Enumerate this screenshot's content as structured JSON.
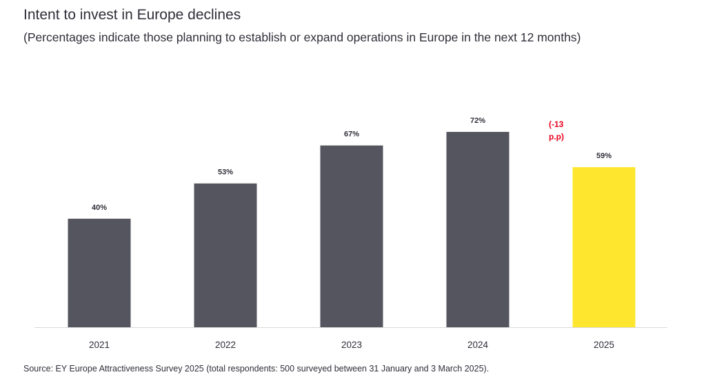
{
  "title": "Intent to invest in Europe declines",
  "subtitle": "(Percentages indicate those planning to establish or expand operations in Europe in the next 12 months)",
  "source": "Source: EY Europe Attractiveness Survey 2025 (total respondents: 500 surveyed between 31 January and 3 March 2025).",
  "colors": {
    "bar_default": "#55555f",
    "bar_highlight": "#ffe62e",
    "annotation": "#e8001c",
    "axis": "#d9d9d9"
  },
  "chart_data": {
    "type": "bar",
    "categories": [
      "2021",
      "2022",
      "2023",
      "2024",
      "2025"
    ],
    "values": [
      40,
      53,
      67,
      72,
      59
    ],
    "data_labels": [
      "40%",
      "53%",
      "67%",
      "72%",
      "59%"
    ],
    "highlight_index": 4,
    "annotation": {
      "category": "2025",
      "lines": [
        "(-13",
        "p.p)"
      ]
    },
    "title": "Intent to invest in Europe declines",
    "xlabel": "",
    "ylabel": "",
    "ylim": [
      0,
      80
    ],
    "grid": false,
    "legend": "none"
  }
}
